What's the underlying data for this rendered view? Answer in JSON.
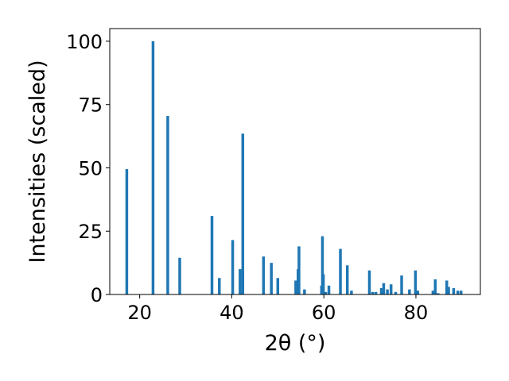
{
  "chart_data": {
    "type": "bar",
    "title": "",
    "xlabel": "2θ (°)",
    "ylabel": "Intensities (scaled)",
    "xlim": [
      13.5,
      94
    ],
    "ylim": [
      0,
      105
    ],
    "x_ticks": [
      20,
      40,
      60,
      80
    ],
    "y_ticks": [
      0,
      25,
      50,
      75,
      100
    ],
    "grid": false,
    "legend": "none",
    "bar_color": "#1f77b4",
    "bar_width": 0.6,
    "x": [
      17.2,
      22.9,
      26.1,
      28.7,
      35.7,
      37.3,
      40.2,
      41.8,
      42.4,
      46.9,
      48.6,
      50.0,
      53.9,
      54.4,
      54.6,
      55.8,
      59.5,
      59.7,
      59.9,
      60.4,
      61.1,
      63.6,
      65.1,
      66.0,
      69.9,
      70.6,
      71.3,
      72.5,
      73.0,
      73.8,
      74.6,
      75.6,
      76.9,
      78.6,
      79.9,
      80.4,
      83.7,
      84.2,
      84.8,
      86.7,
      87.1,
      88.2,
      89.1,
      89.8
    ],
    "values": [
      49.5,
      100,
      70.5,
      14.5,
      31,
      6.5,
      21.5,
      10,
      63.5,
      15,
      12.5,
      6.5,
      5.5,
      10,
      19,
      2,
      3.5,
      23,
      8,
      1,
      3.5,
      18,
      11.5,
      1.5,
      9.5,
      1,
      1,
      2.5,
      4.5,
      2,
      4,
      1,
      7.5,
      2,
      9.5,
      1.5,
      1.5,
      6,
      0.5,
      5.5,
      3,
      2.5,
      1.5,
      1.5
    ]
  }
}
